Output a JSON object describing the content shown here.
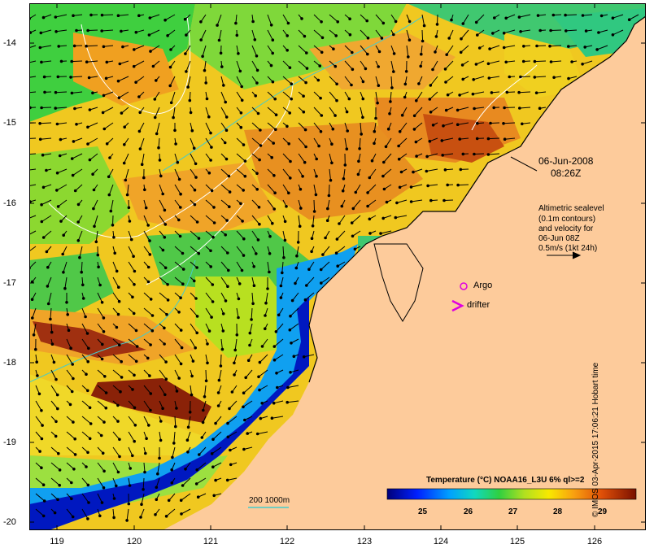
{
  "map": {
    "date": "06-Jun-2008",
    "time": "08:26Z",
    "legend_text_lines": [
      "Altimetric sealevel",
      "(0.1m contours)",
      "and velocity for",
      "06-Jun 08Z",
      "0.5m/s (1kt 24h)"
    ],
    "argo_label": "Argo",
    "drifter_label": "drifter",
    "depth_label": "200 1000m",
    "colorbar_title": "Temperature (°C) NOAA16_L3U 6% ql>=2",
    "colorbar_ticks": [
      "25",
      "26",
      "27",
      "28",
      "29"
    ],
    "credit": "© IMOS 03-Apr-2015 17:06:21 Hobart time",
    "lat_ticks": [
      "-14",
      "-15",
      "-16",
      "-17",
      "-18",
      "-19",
      "-20"
    ],
    "lon_ticks": [
      "119",
      "120",
      "121",
      "122",
      "123",
      "124",
      "125",
      "126"
    ],
    "colors": {
      "land": "#fdcb9b",
      "argo": "#e000e0",
      "drifter": "#e000e0",
      "contour": "#ffffff",
      "depth_contour": "#44cccc"
    }
  }
}
